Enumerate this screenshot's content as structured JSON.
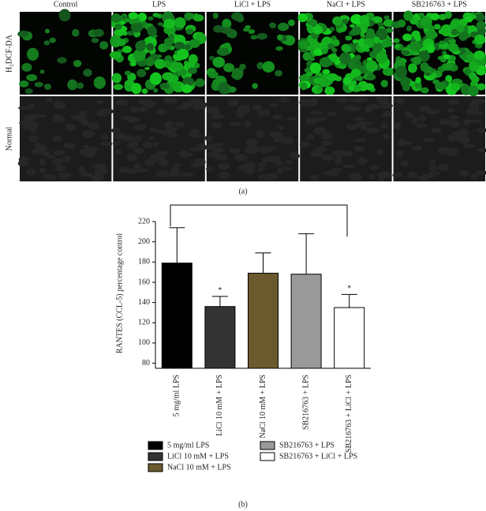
{
  "panel_a": {
    "columns": [
      "Control",
      "LPS",
      "LiCl + LPS",
      "NaCl + LPS",
      "SB216763 + LPS"
    ],
    "rows": [
      "H₂DCF-DA",
      "Normal"
    ],
    "caption": "(a)"
  },
  "chart_data": {
    "type": "bar",
    "y_label": "RANTES (CCL-5) percentage control",
    "categories": [
      "5 mg/ml LPS",
      "LiCl 10 mM + LPS",
      "NaCl 10 mM + LPS",
      "SB216763 + LPS",
      "SB216763 + LiCl + LPS"
    ],
    "values": [
      179,
      136,
      169,
      168,
      135
    ],
    "errors": [
      35,
      10,
      20,
      40,
      13
    ],
    "colors": [
      "#000000",
      "#333333",
      "#6b5a2e",
      "#9a9a9a",
      "#ffffff"
    ],
    "markers": [
      null,
      "*",
      null,
      null,
      "*"
    ],
    "ylim": [
      75,
      220
    ],
    "yticks": [
      80,
      100,
      120,
      140,
      160,
      180,
      200,
      220
    ],
    "caption": "(b)"
  }
}
